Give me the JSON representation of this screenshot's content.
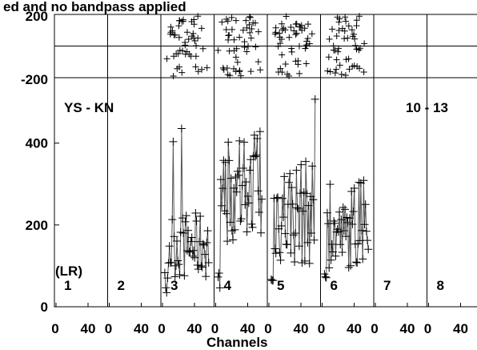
{
  "chart_data": {
    "type": "scatter",
    "title": "ed and no bandpass applied",
    "xlabel": "Channels",
    "baseline": "YS - KN",
    "time_range": "10 - 13",
    "polarization": "(LR)",
    "x_ticks": [
      "0",
      "40"
    ],
    "phase_panel": {
      "ylim": [
        -200,
        200
      ],
      "y_ticks": [
        "200",
        "-200"
      ],
      "zero_line": 0
    },
    "amp_panel": {
      "ylim": [
        0,
        560
      ],
      "y_ticks": [
        "0",
        "200",
        "400"
      ]
    },
    "xlim": [
      0,
      63
    ],
    "subbands": [
      {
        "label": "1",
        "has_data": false
      },
      {
        "label": "2",
        "has_data": false
      },
      {
        "label": "3",
        "has_data": true,
        "amp_base": 150,
        "amp_spread": 160,
        "amp_peak": 440
      },
      {
        "label": "4",
        "has_data": true,
        "amp_base": 270,
        "amp_spread": 220,
        "amp_peak": 430
      },
      {
        "label": "5",
        "has_data": true,
        "amp_base": 230,
        "amp_spread": 260,
        "amp_peak": 530
      },
      {
        "label": "6",
        "has_data": true,
        "amp_base": 175,
        "amp_spread": 160,
        "amp_peak": 320
      },
      {
        "label": "7",
        "has_data": false
      },
      {
        "label": "8",
        "has_data": false
      }
    ]
  }
}
